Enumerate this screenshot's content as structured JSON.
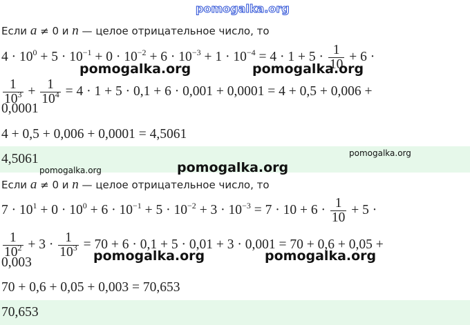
{
  "watermarks": [
    "pomogalka.org",
    "pomogalka.org",
    "pomogalka.org",
    "pomogalka.org",
    "pomogalka.org",
    "pomogalka.org",
    "pomogalka.org",
    "pomogalka.org"
  ],
  "blocks": [
    {
      "intro": [
        "Если ",
        {
          "var": "a"
        },
        " ≠ 0 и ",
        {
          "var": "n"
        },
        " — целое отрицательное число, то"
      ],
      "lines": [
        [
          "4 · 10",
          {
            "sup": "0"
          },
          " + 5 · 10",
          {
            "sup": "−1"
          },
          " + 0 · 10",
          {
            "sup": "−2"
          },
          " + 6 · 10",
          {
            "sup": "−3"
          },
          " + 1 · 10",
          {
            "sup": "−4"
          },
          " = 4 · 1 + 5 · ",
          {
            "frac": {
              "num": "1",
              "den": "10"
            }
          },
          " + 6 ·"
        ],
        [
          {
            "frac": {
              "num": "1",
              "den": "10",
              "den_sup": "3"
            }
          },
          " + ",
          {
            "frac": {
              "num": "1",
              "den": "10",
              "den_sup": "4"
            }
          },
          " = 4 · 1 + 5 · 0,1 + 6 · 0,001 + 0,0001 = 4 + 0,5 + 0,006 +"
        ],
        [
          "0,0001"
        ],
        [
          "4 + 0,5 + 0,006 + 0,0001 = 4,5061"
        ]
      ],
      "answer": "4,5061"
    },
    {
      "intro": [
        "Если ",
        {
          "var": "a"
        },
        " ≠ 0 и ",
        {
          "var": "n"
        },
        " — целое отрицательное число, то"
      ],
      "lines": [
        [
          "7 · 10",
          {
            "sup": "1"
          },
          " + 0 · 10",
          {
            "sup": "0"
          },
          " + 6 · 10",
          {
            "sup": "−1"
          },
          " + 5 · 10",
          {
            "sup": "−2"
          },
          " + 3 · 10",
          {
            "sup": "−3"
          },
          " = 7 · 10 + 6 · ",
          {
            "frac": {
              "num": "1",
              "den": "10"
            }
          },
          " + 5 ·"
        ],
        [
          {
            "frac": {
              "num": "1",
              "den": "10",
              "den_sup": "2"
            }
          },
          " + 3 · ",
          {
            "frac": {
              "num": "1",
              "den": "10",
              "den_sup": "3"
            }
          },
          " = 70 + 6 · 0,1 + 5 · 0,01 + 3 · 0,001 = 70 + 0,6 + 0,05 +"
        ],
        [
          "0,003"
        ],
        [
          "70 + 0,6 + 0,05 + 0,003 = 70,653"
        ]
      ],
      "answer": "70,653"
    }
  ]
}
